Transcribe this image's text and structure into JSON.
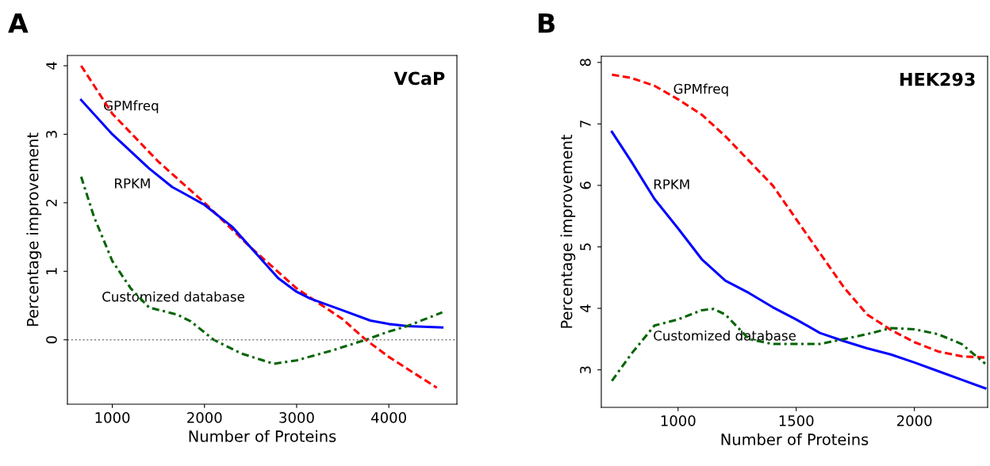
{
  "chart_data": [
    {
      "type": "line",
      "title": "VCaP",
      "xlabel": "Number of Proteins",
      "ylabel": "Percentage improvement",
      "xlim": [
        513,
        4739
      ],
      "ylim": [
        -0.94,
        4.15
      ],
      "xticks": [
        1000,
        2000,
        3000,
        4000
      ],
      "yticks": [
        0,
        1,
        2,
        3,
        4
      ],
      "grid": false,
      "legend": false,
      "ref_lines": [
        {
          "axis": "y",
          "value": 0,
          "color": "#808080",
          "line_style": "dotted"
        }
      ],
      "annotations": [
        "A",
        "GPMfreq",
        "RPKM",
        "Customized database"
      ],
      "series": [
        {
          "color": "#ff0000",
          "line_style": "dashed",
          "x": [
            662,
            1000,
            1500,
            2000,
            2500,
            3000,
            3500,
            3750,
            4000,
            4521
          ],
          "values": [
            4.0,
            3.3,
            2.6,
            2.0,
            1.35,
            0.75,
            0.3,
            0.0,
            -0.25,
            -0.7
          ]
        },
        {
          "color": "#0000ff",
          "line_style": "solid",
          "x": [
            662,
            1000,
            1400,
            1650,
            1800,
            2000,
            2300,
            2600,
            2800,
            3000,
            3150,
            3500,
            3800,
            4000,
            4200,
            4580
          ],
          "values": [
            3.5,
            3.0,
            2.5,
            2.23,
            2.12,
            1.97,
            1.65,
            1.2,
            0.9,
            0.7,
            0.6,
            0.43,
            0.28,
            0.23,
            0.2,
            0.18
          ]
        },
        {
          "color": "#006400",
          "line_style": "dashdot",
          "x": [
            662,
            800,
            1000,
            1200,
            1400,
            1700,
            1850,
            2100,
            2400,
            2750,
            3000,
            3400,
            3750,
            4000,
            4200,
            4580
          ],
          "values": [
            2.38,
            1.8,
            1.15,
            0.75,
            0.47,
            0.37,
            0.27,
            0.0,
            -0.2,
            -0.35,
            -0.3,
            -0.15,
            0.0,
            0.12,
            0.2,
            0.4
          ]
        }
      ]
    },
    {
      "type": "line",
      "title": "HEK293",
      "xlabel": "Number of Proteins",
      "ylabel": "Percentage improvement",
      "xlim": [
        675,
        2310
      ],
      "ylim": [
        2.39,
        8.1
      ],
      "xticks": [
        1000,
        1500,
        2000
      ],
      "yticks": [
        3,
        4,
        5,
        6,
        7,
        8
      ],
      "grid": false,
      "legend": false,
      "annotations": [
        "B",
        "GPMfreq",
        "RPKM",
        "Customized database"
      ],
      "series": [
        {
          "color": "#ff0000",
          "line_style": "dashed",
          "x": [
            720,
            800,
            900,
            1000,
            1100,
            1200,
            1300,
            1400,
            1500,
            1600,
            1700,
            1800,
            1900,
            2000,
            2100,
            2200,
            2300
          ],
          "values": [
            7.8,
            7.75,
            7.62,
            7.4,
            7.15,
            6.8,
            6.4,
            6.0,
            5.45,
            4.9,
            4.35,
            3.9,
            3.65,
            3.45,
            3.3,
            3.22,
            3.2
          ]
        },
        {
          "color": "#0000ff",
          "line_style": "solid",
          "x": [
            720,
            800,
            900,
            1000,
            1100,
            1200,
            1300,
            1400,
            1500,
            1600,
            1700,
            1800,
            1900,
            2000,
            2100,
            2200,
            2300
          ],
          "values": [
            6.87,
            6.4,
            5.78,
            5.3,
            4.8,
            4.45,
            4.25,
            4.02,
            3.82,
            3.6,
            3.47,
            3.35,
            3.25,
            3.12,
            2.98,
            2.84,
            2.7
          ]
        },
        {
          "color": "#006400",
          "line_style": "dashdot",
          "x": [
            720,
            800,
            900,
            1000,
            1100,
            1150,
            1200,
            1300,
            1400,
            1500,
            1600,
            1700,
            1800,
            1900,
            2000,
            2100,
            2200,
            2300
          ],
          "values": [
            2.82,
            3.25,
            3.72,
            3.82,
            3.97,
            3.99,
            3.9,
            3.5,
            3.42,
            3.42,
            3.42,
            3.5,
            3.58,
            3.68,
            3.66,
            3.58,
            3.42,
            3.1
          ]
        }
      ]
    }
  ]
}
